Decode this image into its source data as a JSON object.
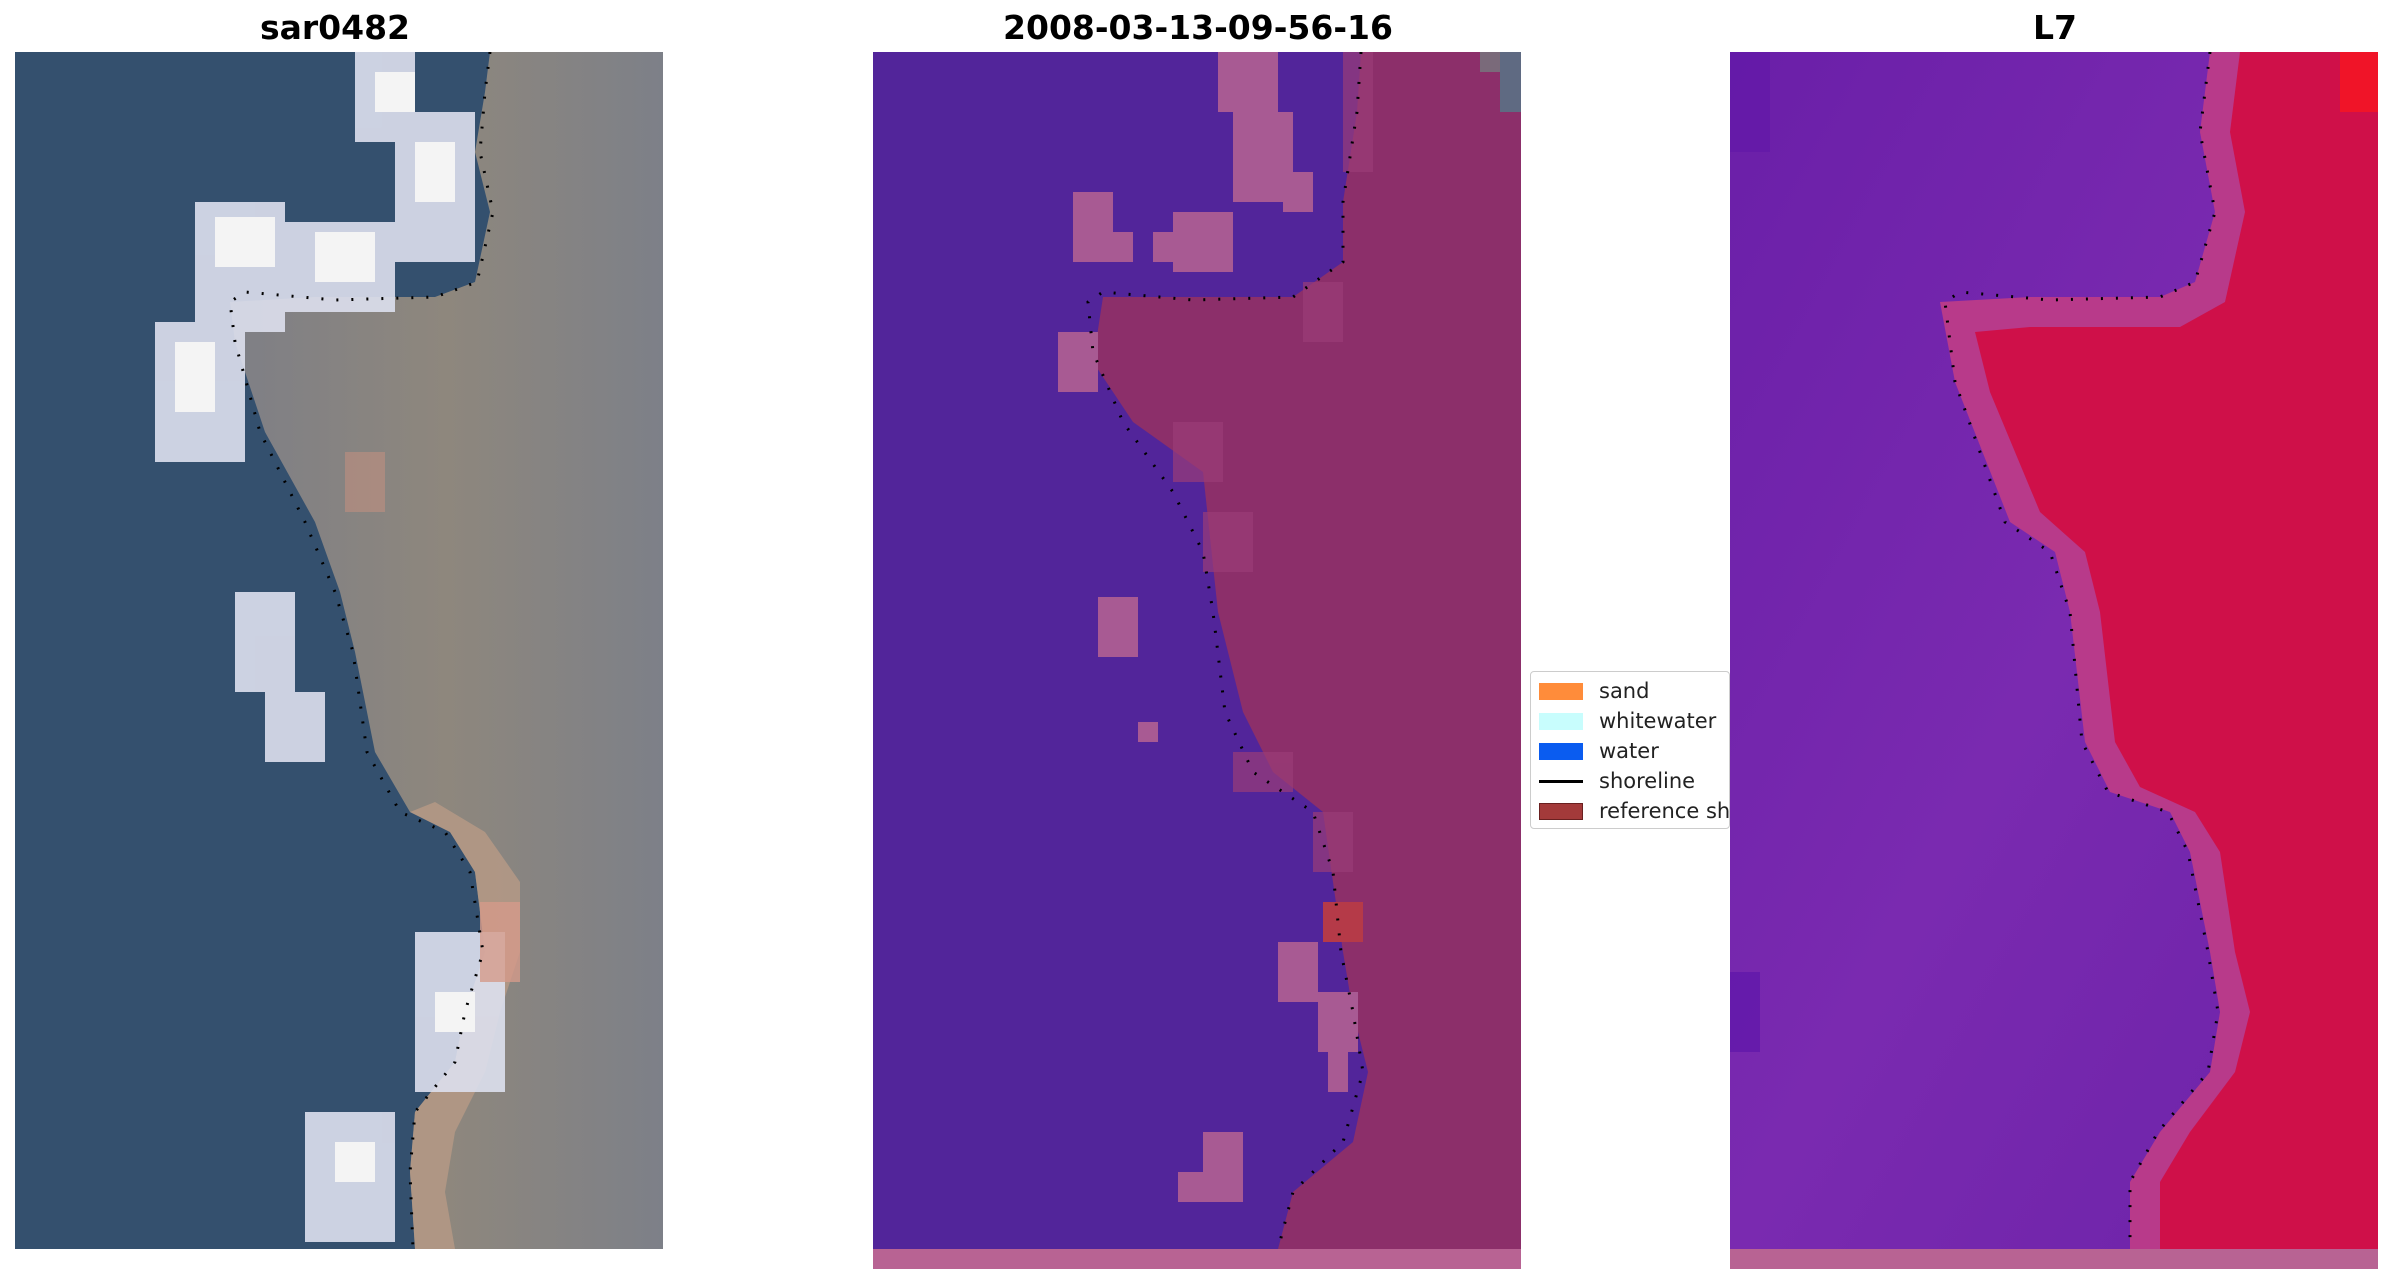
{
  "panels": [
    {
      "title": "sar0482"
    },
    {
      "title": "2008-03-13-09-56-16"
    },
    {
      "title": "L7"
    }
  ],
  "legend": {
    "items": [
      {
        "label": "sand",
        "color": "#ff8c3a",
        "kind": "patch"
      },
      {
        "label": "whitewater",
        "color": "#c8fdfd",
        "kind": "patch"
      },
      {
        "label": "water",
        "color": "#0a5cf0",
        "kind": "patch"
      },
      {
        "label": "shoreline",
        "color": "#000000",
        "kind": "line"
      },
      {
        "label": "reference sh",
        "color": "#a33a3a",
        "kind": "patch"
      }
    ]
  },
  "colors": {
    "rgb_water": "#34506e",
    "rgb_land": "#8a857c",
    "rgb_whitewater": "#dcdcec",
    "class_water": "#52259a",
    "class_land": "#8c2f6a",
    "class_sand_overlay": "#b06595",
    "class_ref": "#b53a48",
    "index_water": "#7a2ab0",
    "index_land": "#cf1049",
    "index_transition": "#b83a8a"
  }
}
